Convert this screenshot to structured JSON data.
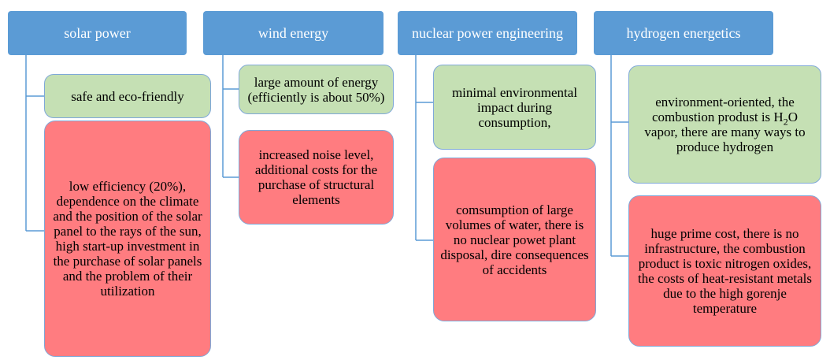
{
  "columns": [
    {
      "header": "solar power",
      "pros": "safe and eco-friendly",
      "cons": "low efficiency (20%), dependence on the climate and the position of the solar panel to the rays of the sun, high start-up investment in the purchase of solar panels and the problem of their utilization"
    },
    {
      "header": "wind energy",
      "pros": "large amount of energy (efficiently is about 50%)",
      "cons": "increased noise level, additional costs for the purchase of structural elements"
    },
    {
      "header": "nuclear power engineering",
      "pros": "minimal environmental impact during consumption,",
      "cons": "comsumption of large volumes of water, there is no nuclear powet plant disposal, dire consequences of accidents"
    },
    {
      "header": "hydrogen energetics",
      "pros": {
        "before": "environment-oriented, the combustion produst is H",
        "sub": "2",
        "after": "O vapor, there are many ways to produce hydrogen"
      },
      "cons": "huge prime cost, there is no infrastructure, the combustion product is toxic nitrogen oxides, the costs of heat-resistant metals due to the high gorenje temperature"
    }
  ]
}
